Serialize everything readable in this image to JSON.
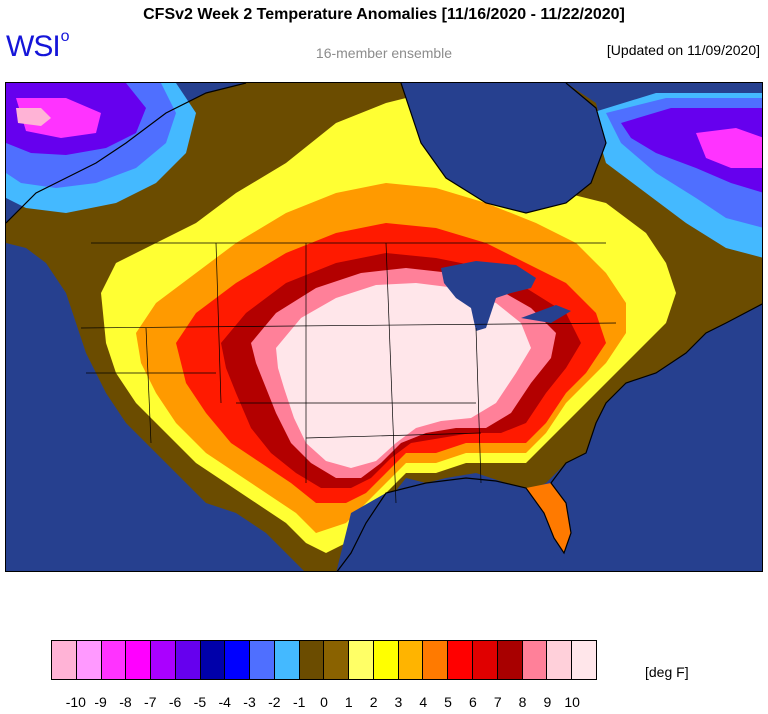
{
  "header": {
    "title": "CFSv2 Week 2 Temperature Anomalies [11/16/2020 - 11/22/2020]",
    "logo_text": "WSI",
    "logo_mark": "o",
    "subtitle": "16-member ensemble",
    "updated": "[Updated on 11/09/2020]"
  },
  "legend": {
    "units": "[deg F]",
    "colors": [
      "#ffb3d6",
      "#ff99ff",
      "#ff33ff",
      "#ff00ff",
      "#aa00ff",
      "#6600ee",
      "#0000aa",
      "#0000ff",
      "#4f6fff",
      "#44b9ff",
      "#6b4c00",
      "#8a6200",
      "#ffff66",
      "#ffff00",
      "#ffb400",
      "#ff7a00",
      "#ff0000",
      "#e00000",
      "#a80000",
      "#ff8099",
      "#ffd0da",
      "#ffe6ea"
    ],
    "ticks": [
      "-10",
      "-9",
      "-8",
      "-7",
      "-6",
      "-5",
      "-4",
      "-3",
      "-2",
      "-1",
      "0",
      "1",
      "2",
      "3",
      "4",
      "5",
      "6",
      "7",
      "8",
      "9",
      "10"
    ]
  },
  "map": {
    "ocean_color": "#26408f",
    "region": "North America"
  }
}
